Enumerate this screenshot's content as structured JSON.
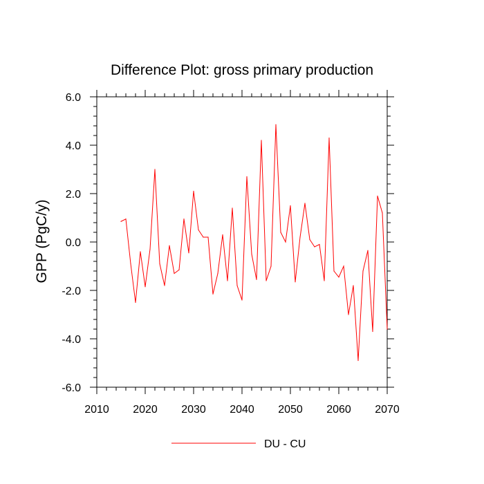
{
  "chart_data": {
    "type": "line",
    "title": "Difference Plot: gross primary production",
    "xlabel": "",
    "ylabel": "GPP  (PgC/y)",
    "xlim": [
      2010,
      2070
    ],
    "ylim": [
      -6.0,
      6.0
    ],
    "xticks": [
      2010,
      2020,
      2030,
      2040,
      2050,
      2060,
      2070
    ],
    "xtick_labels": [
      "2010",
      "2020",
      "2030",
      "2040",
      "2050",
      "2060",
      "2070"
    ],
    "yticks": [
      -6.0,
      -4.0,
      -2.0,
      0.0,
      2.0,
      4.0,
      6.0
    ],
    "ytick_labels": [
      "-6.0",
      "-4.0",
      "-2.0",
      "0.0",
      "2.0",
      "4.0",
      "6.0"
    ],
    "grid": false,
    "legend_position": "bottom-center",
    "series": [
      {
        "name": "DU - CU",
        "color": "#ff0000",
        "x": [
          2015,
          2016,
          2017,
          2018,
          2019,
          2020,
          2021,
          2022,
          2023,
          2024,
          2025,
          2026,
          2027,
          2028,
          2029,
          2030,
          2031,
          2032,
          2033,
          2034,
          2035,
          2036,
          2037,
          2038,
          2039,
          2040,
          2041,
          2042,
          2043,
          2044,
          2045,
          2046,
          2047,
          2048,
          2049,
          2050,
          2051,
          2052,
          2053,
          2054,
          2055,
          2056,
          2057,
          2058,
          2059,
          2060,
          2061,
          2062,
          2063,
          2064,
          2065,
          2066,
          2067,
          2068,
          2069,
          2070
        ],
        "values": [
          0.85,
          0.95,
          -0.9,
          -2.5,
          -0.4,
          -1.85,
          -0.3,
          3.0,
          -0.9,
          -1.8,
          -0.15,
          -1.3,
          -1.15,
          0.95,
          -0.45,
          2.1,
          0.5,
          0.2,
          0.2,
          -2.15,
          -1.3,
          0.3,
          -1.6,
          1.4,
          -1.8,
          -2.4,
          2.7,
          -0.5,
          -1.55,
          4.2,
          -1.6,
          -1.0,
          4.85,
          0.4,
          0.0,
          1.5,
          -1.65,
          0.2,
          1.6,
          0.1,
          -0.2,
          -0.1,
          -1.6,
          4.3,
          -1.2,
          -1.45,
          -1.0,
          -3.0,
          -1.8,
          -4.9,
          -1.2,
          -0.35,
          -3.7,
          1.9,
          1.2,
          -3.6
        ]
      }
    ]
  }
}
